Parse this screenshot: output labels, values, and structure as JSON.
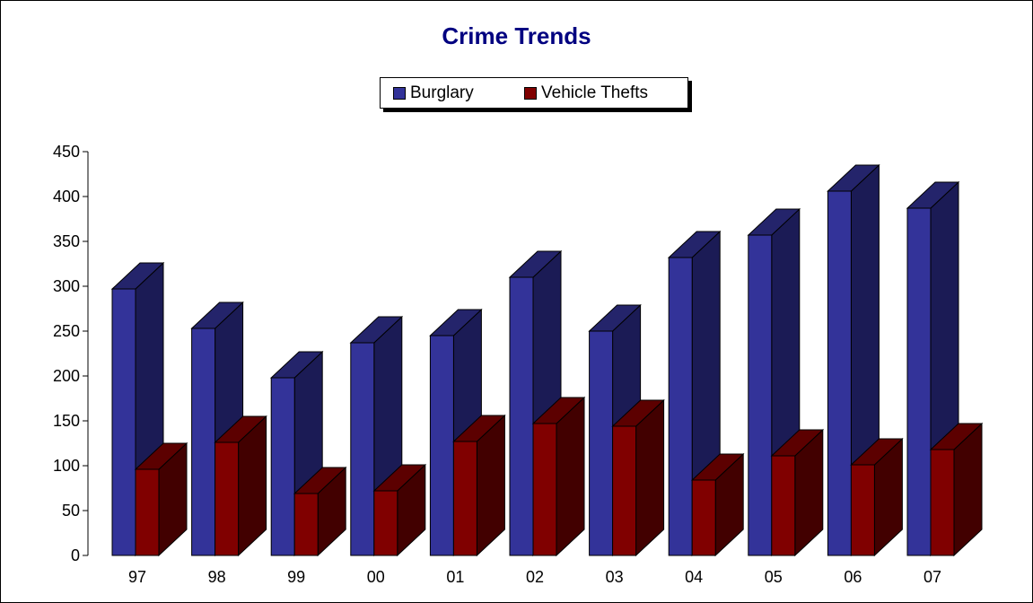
{
  "chart_data": {
    "type": "bar",
    "title": "Crime Trends",
    "xlabel": "",
    "ylabel": "",
    "categories": [
      "97",
      "98",
      "99",
      "00",
      "01",
      "02",
      "03",
      "04",
      "05",
      "06",
      "07"
    ],
    "series": [
      {
        "name": "Burglary",
        "values": [
          297,
          253,
          198,
          237,
          245,
          310,
          250,
          332,
          357,
          406,
          387
        ]
      },
      {
        "name": "Vehicle Thefts",
        "values": [
          96,
          126,
          69,
          72,
          127,
          147,
          144,
          84,
          111,
          101,
          118
        ]
      }
    ],
    "ylim": [
      0,
      450
    ],
    "yticks": [
      "0",
      "50",
      "100",
      "150",
      "200",
      "250",
      "300",
      "350",
      "400",
      "450"
    ],
    "grid": false,
    "legend_position": "top-center",
    "bar_3d": true,
    "colors": {
      "title": "#000080",
      "series_front": [
        "#333399",
        "#800000"
      ],
      "series_side": [
        "#1b1b55",
        "#420000"
      ],
      "series_top": [
        "#24246b",
        "#5c0000"
      ]
    }
  }
}
